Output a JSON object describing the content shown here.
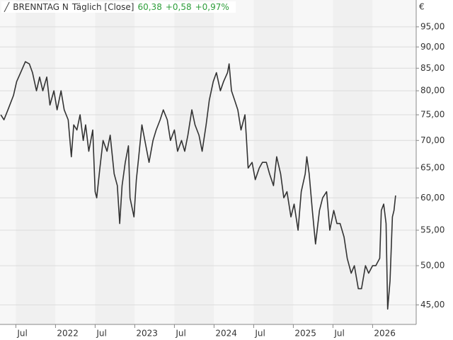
{
  "chart_data": {
    "type": "line",
    "subtitle": "Täglich [Close]",
    "last_price": "60,38",
    "change": "+0,58",
    "change_pct": "+0,97%",
    "y_unit": "€",
    "log_scale": true,
    "grid": true,
    "xlim": [
      2021.3,
      2026.55
    ],
    "ylim": [
      42.7,
      102.1
    ],
    "xticks": [
      {
        "value": 2021.5,
        "label": "Jul"
      },
      2022,
      {
        "value": 2022.5,
        "label": "Jul"
      },
      2023,
      {
        "value": 2023.5,
        "label": "Jul"
      },
      2024,
      {
        "value": 2024.5,
        "label": "Jul"
      },
      2025,
      {
        "value": 2025.5,
        "label": "Jul"
      },
      2026
    ],
    "yticks": [
      {
        "value": 45,
        "label": "45,00"
      },
      {
        "value": 50,
        "label": "50,00"
      },
      {
        "value": 55,
        "label": "55,00"
      },
      {
        "value": 60,
        "label": "60,00"
      },
      {
        "value": 65,
        "label": "65,00"
      },
      {
        "value": 70,
        "label": "70,00"
      },
      {
        "value": 75,
        "label": "75,00"
      },
      {
        "value": 80,
        "label": "80,00"
      },
      {
        "value": 85,
        "label": "85,00"
      },
      {
        "value": 90,
        "label": "90,00"
      },
      {
        "value": 95,
        "label": "95,00"
      }
    ],
    "x": [
      2021.31,
      2021.35,
      2021.4,
      2021.47,
      2021.51,
      2021.56,
      2021.62,
      2021.67,
      2021.71,
      2021.76,
      2021.8,
      2021.84,
      2021.89,
      2021.93,
      2021.98,
      2022.02,
      2022.07,
      2022.11,
      2022.16,
      2022.2,
      2022.23,
      2022.27,
      2022.31,
      2022.35,
      2022.38,
      2022.42,
      2022.47,
      2022.5,
      2022.52,
      2022.56,
      2022.6,
      2022.65,
      2022.69,
      2022.74,
      2022.78,
      2022.81,
      2022.84,
      2022.88,
      2022.92,
      2022.94,
      2022.99,
      2023.02,
      2023.05,
      2023.09,
      2023.14,
      2023.18,
      2023.23,
      2023.27,
      2023.32,
      2023.36,
      2023.41,
      2023.45,
      2023.5,
      2023.54,
      2023.59,
      2023.63,
      2023.67,
      2023.72,
      2023.76,
      2023.81,
      2023.85,
      2023.9,
      2023.94,
      2023.99,
      2024.03,
      2024.08,
      2024.12,
      2024.17,
      2024.19,
      2024.22,
      2024.26,
      2024.3,
      2024.34,
      2024.39,
      2024.41,
      2024.43,
      2024.48,
      2024.52,
      2024.57,
      2024.61,
      2024.66,
      2024.7,
      2024.75,
      2024.79,
      2024.84,
      2024.88,
      2024.92,
      2024.97,
      2025.01,
      2025.06,
      2025.1,
      2025.15,
      2025.17,
      2025.2,
      2025.24,
      2025.28,
      2025.33,
      2025.37,
      2025.42,
      2025.46,
      2025.51,
      2025.55,
      2025.59,
      2025.64,
      2025.68,
      2025.73,
      2025.77,
      2025.82,
      2025.86,
      2025.91,
      2025.95,
      2026.0,
      2026.04,
      2026.09,
      2026.11,
      2026.14,
      2026.17,
      2026.19,
      2026.22,
      2026.25,
      2026.27,
      2026.29
    ],
    "series": [
      {
        "name": "BRENNTAG N",
        "color": "#333333",
        "values": [
          75,
          74,
          76,
          79,
          82,
          84,
          86.5,
          86,
          84,
          80,
          83,
          80,
          83,
          77,
          80,
          76,
          80,
          76,
          74,
          67,
          73,
          72,
          75,
          70,
          73,
          68,
          72,
          61,
          60,
          65,
          70,
          68,
          71,
          64,
          62,
          56,
          62,
          66,
          69,
          60,
          57,
          63,
          67,
          73,
          69,
          66,
          70,
          72,
          74,
          76,
          74,
          70,
          72,
          68,
          70,
          68,
          71,
          76,
          73,
          71,
          68,
          73,
          78,
          82,
          84,
          80,
          82,
          84,
          86,
          80,
          78,
          76,
          72,
          75,
          70,
          65,
          66,
          63,
          65,
          66,
          66,
          64,
          62,
          67,
          64,
          60,
          61,
          57,
          59,
          55,
          61,
          64,
          67,
          64,
          58,
          53,
          58,
          60,
          61,
          55,
          58,
          56,
          56,
          54,
          51,
          49,
          50,
          47,
          47,
          50,
          49,
          50,
          50,
          51,
          58,
          59,
          56,
          44.5,
          48,
          57,
          58,
          60.38
        ]
      }
    ]
  }
}
